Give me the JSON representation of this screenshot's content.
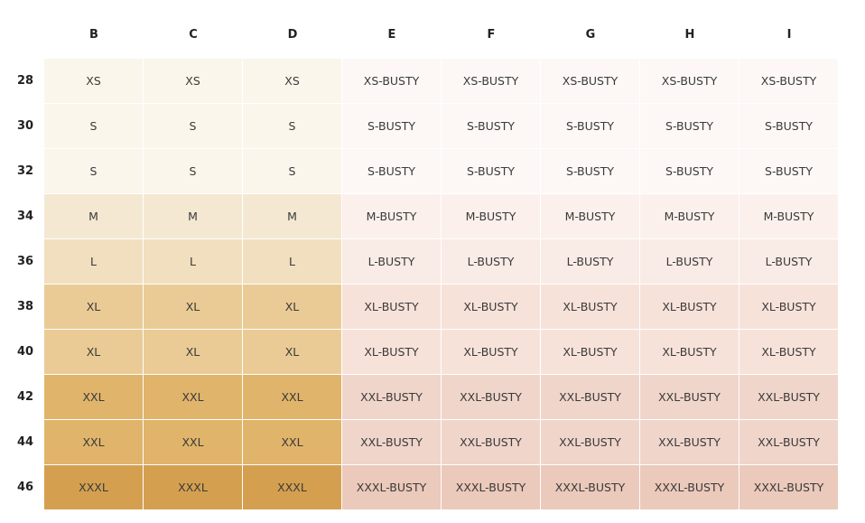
{
  "table": {
    "columns": [
      "B",
      "C",
      "D",
      "E",
      "F",
      "G",
      "H",
      "I"
    ],
    "rows": [
      {
        "label": "28",
        "cells": [
          "XS",
          "XS",
          "XS",
          "XS-BUSTY",
          "XS-BUSTY",
          "XS-BUSTY",
          "XS-BUSTY",
          "XS-BUSTY"
        ]
      },
      {
        "label": "30",
        "cells": [
          "S",
          "S",
          "S",
          "S-BUSTY",
          "S-BUSTY",
          "S-BUSTY",
          "S-BUSTY",
          "S-BUSTY"
        ]
      },
      {
        "label": "32",
        "cells": [
          "S",
          "S",
          "S",
          "S-BUSTY",
          "S-BUSTY",
          "S-BUSTY",
          "S-BUSTY",
          "S-BUSTY"
        ]
      },
      {
        "label": "34",
        "cells": [
          "M",
          "M",
          "M",
          "M-BUSTY",
          "M-BUSTY",
          "M-BUSTY",
          "M-BUSTY",
          "M-BUSTY"
        ]
      },
      {
        "label": "36",
        "cells": [
          "L",
          "L",
          "L",
          "L-BUSTY",
          "L-BUSTY",
          "L-BUSTY",
          "L-BUSTY",
          "L-BUSTY"
        ]
      },
      {
        "label": "38",
        "cells": [
          "XL",
          "XL",
          "XL",
          "XL-BUSTY",
          "XL-BUSTY",
          "XL-BUSTY",
          "XL-BUSTY",
          "XL-BUSTY"
        ]
      },
      {
        "label": "40",
        "cells": [
          "XL",
          "XL",
          "XL",
          "XL-BUSTY",
          "XL-BUSTY",
          "XL-BUSTY",
          "XL-BUSTY",
          "XL-BUSTY"
        ]
      },
      {
        "label": "42",
        "cells": [
          "XXL",
          "XXL",
          "XXL",
          "XXL-BUSTY",
          "XXL-BUSTY",
          "XXL-BUSTY",
          "XXL-BUSTY",
          "XXL-BUSTY"
        ]
      },
      {
        "label": "44",
        "cells": [
          "XXL",
          "XXL",
          "XXL",
          "XXL-BUSTY",
          "XXL-BUSTY",
          "XXL-BUSTY",
          "XXL-BUSTY",
          "XXL-BUSTY"
        ]
      },
      {
        "label": "46",
        "cells": [
          "XXXL",
          "XXXL",
          "XXXL",
          "XXXL-BUSTY",
          "XXXL-BUSTY",
          "XXXL-BUSTY",
          "XXXL-BUSTY",
          "XXXL-BUSTY"
        ]
      }
    ]
  }
}
